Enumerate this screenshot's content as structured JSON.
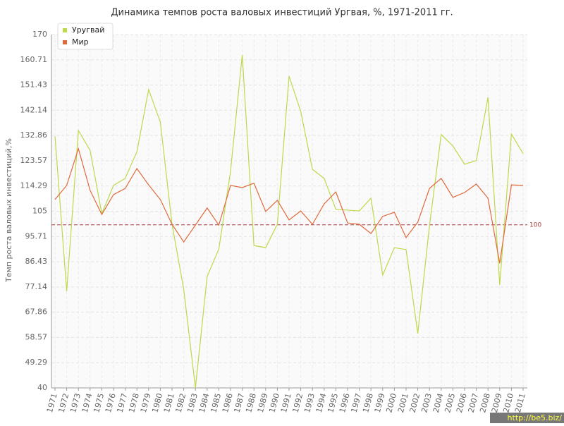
{
  "chart_data": {
    "type": "line",
    "title": "Динамика темпов роста валовых инвестиций Ургвая, %, 1971-2011 гг.",
    "y_label": "Темп роста валовых инвестиций,%",
    "categories": [
      "1971",
      "1972",
      "1973",
      "1974",
      "1975",
      "1976",
      "1977",
      "1978",
      "1979",
      "1980",
      "1981",
      "1982",
      "1983",
      "1984",
      "1985",
      "1986",
      "1987",
      "1988",
      "1989",
      "1990",
      "1991",
      "1992",
      "1993",
      "1994",
      "1995",
      "1996",
      "1997",
      "1998",
      "1999",
      "2000",
      "2001",
      "2002",
      "2003",
      "2004",
      "2005",
      "2006",
      "2007",
      "2008",
      "2009",
      "2010",
      "2011"
    ],
    "series": [
      {
        "name": "Уругвай",
        "color": "#bcd94a",
        "values": [
          132.6,
          75.6,
          134.7,
          127.4,
          104.1,
          114.5,
          117.1,
          126.9,
          149.8,
          137.8,
          100.2,
          76.3,
          40,
          81,
          91.1,
          119.7,
          162.5,
          92.4,
          91.6,
          100.2,
          154.7,
          141.7,
          120.4,
          117.1,
          105.7,
          105.4,
          105.1,
          109.8,
          81.5,
          91.6,
          90.9,
          60,
          99.7,
          133.2,
          129,
          122.3,
          123.6,
          146.9,
          77.9,
          133.4,
          126.2
        ]
      },
      {
        "name": "Мир",
        "color": "#e0693c",
        "values": [
          109.3,
          114.5,
          128,
          112.7,
          103.8,
          111.1,
          113.4,
          120.7,
          114.7,
          109.3,
          100.2,
          93.7,
          99.9,
          106.2,
          99.9,
          114.5,
          113.7,
          115.3,
          104.9,
          109,
          101.8,
          105.1,
          100.2,
          107.7,
          112.1,
          100.7,
          100.2,
          96.8,
          103.1,
          104.6,
          95.3,
          101,
          113.4,
          117.1,
          110.1,
          111.9,
          115,
          109.8,
          85.9,
          114.7,
          114.5
        ]
      }
    ],
    "ylim": [
      40,
      170
    ],
    "yticks": [
      40,
      49.29,
      58.57,
      67.86,
      77.14,
      86.43,
      95.71,
      105,
      114.29,
      123.57,
      132.86,
      142.14,
      151.43,
      160.71,
      170
    ],
    "grid": true,
    "reference_line": {
      "value": 100,
      "color": "#a33a3a"
    },
    "legend": "top-left",
    "watermark": "http://be5.biz/"
  }
}
